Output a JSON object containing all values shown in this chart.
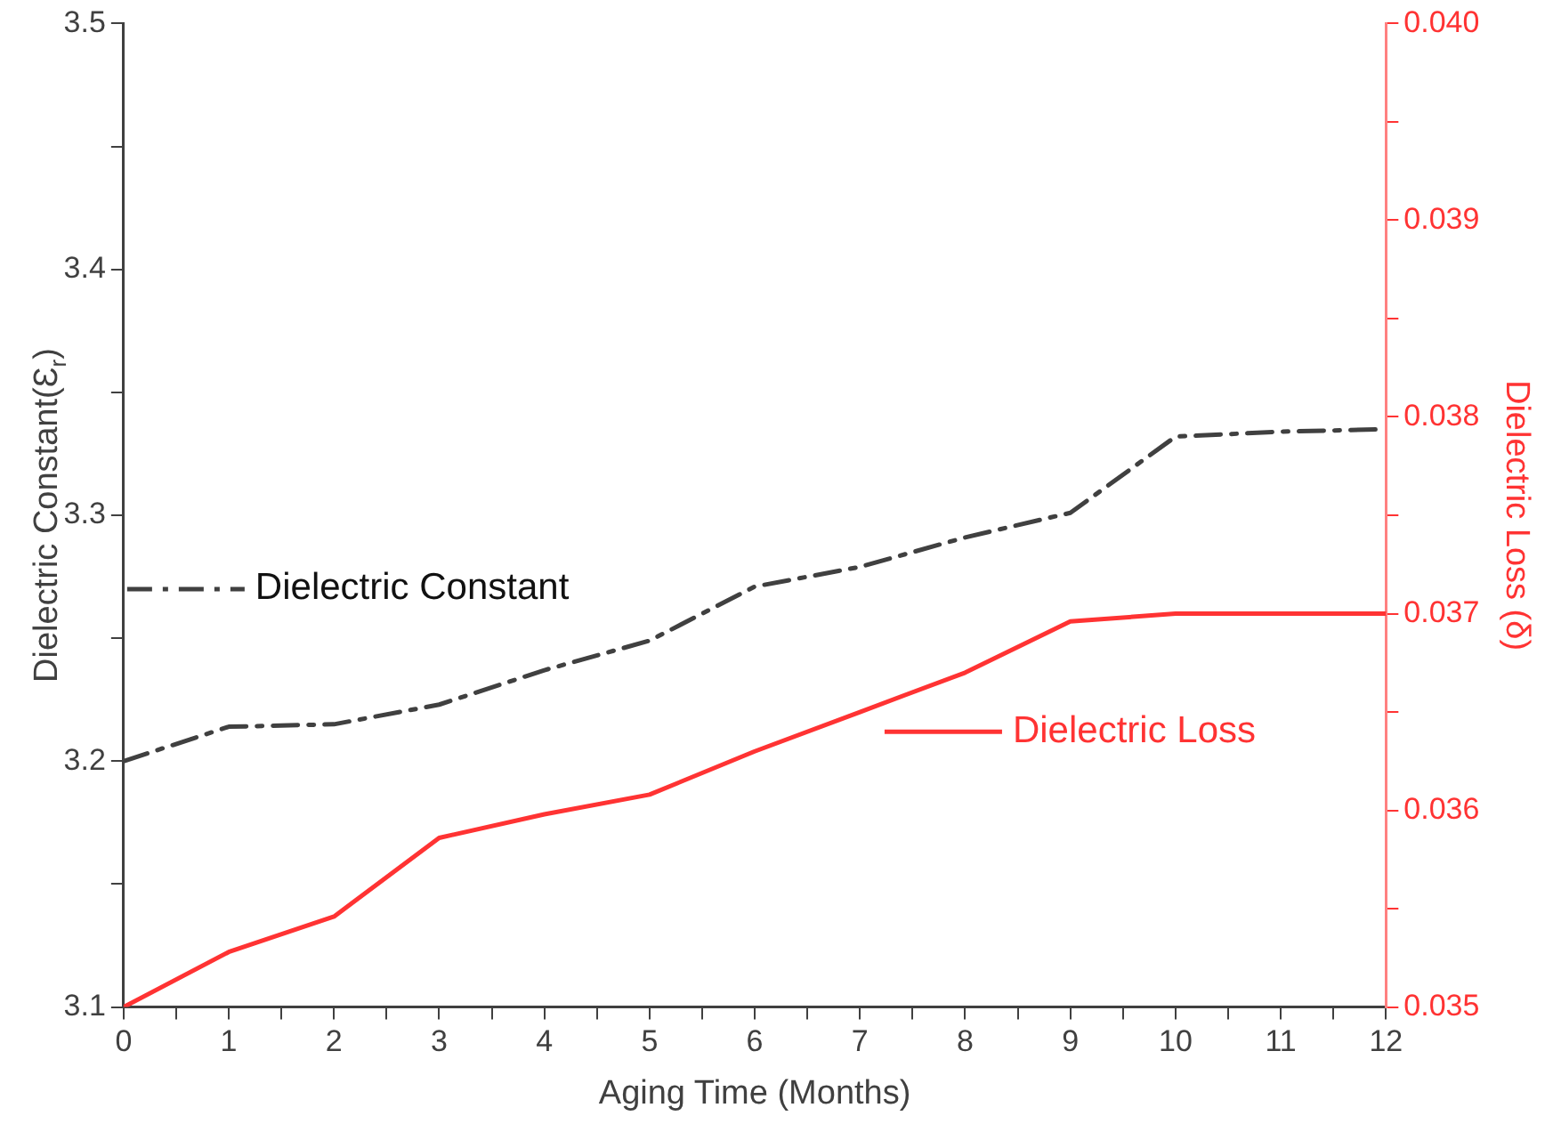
{
  "chart_data": {
    "type": "line",
    "xlabel": "Aging Time (Months)",
    "ylabel": "Dielectric Constant(Ɛ$_{r}$)",
    "y2label": "Dielectric Loss (δ)",
    "x": [
      0,
      1,
      2,
      3,
      4,
      5,
      6,
      7,
      8,
      9,
      10,
      11,
      12
    ],
    "series": [
      {
        "name": "Dielectric Constant",
        "color": "#404040",
        "line_style": "dashdot",
        "values": [
          3.2,
          3.214,
          3.215,
          3.223,
          3.237,
          3.249,
          3.271,
          3.279,
          3.291,
          3.301,
          3.332,
          3.334,
          3.335
        ]
      },
      {
        "name": "Dielectric Loss",
        "color": "#ff3333",
        "axis": "y2",
        "line_style": "solid",
        "values": [
          0.035,
          0.03528,
          0.03546,
          0.03586,
          0.03598,
          0.03608,
          0.0363,
          0.0365,
          0.0367,
          0.03696,
          0.037,
          0.037,
          0.037
        ]
      }
    ],
    "xlim": [
      0,
      12
    ],
    "xticks": [
      0,
      {
        "value": 0.5,
        "label": null
      },
      1,
      {
        "value": 1.5,
        "label": null
      },
      2,
      {
        "value": 2.5,
        "label": null
      },
      3,
      {
        "value": 3.5,
        "label": null
      },
      4,
      {
        "value": 4.5,
        "label": null
      },
      5,
      {
        "value": 5.5,
        "label": null
      },
      6,
      {
        "value": 6.5,
        "label": null
      },
      7,
      {
        "value": 7.5,
        "label": null
      },
      8,
      {
        "value": 8.5,
        "label": null
      },
      9,
      {
        "value": 9.5,
        "label": null
      },
      10,
      {
        "value": 10.5,
        "label": null
      },
      11,
      {
        "value": 11.5,
        "label": null
      },
      12
    ],
    "ylim": [
      3.1,
      3.5
    ],
    "yticks": [
      {
        "value": 3.1,
        "label": "3.1"
      },
      {
        "value": 3.15,
        "label": null
      },
      {
        "value": 3.2,
        "label": "3.2"
      },
      {
        "value": 3.25,
        "label": null
      },
      {
        "value": 3.3,
        "label": "3.3"
      },
      {
        "value": 3.35,
        "label": null
      },
      {
        "value": 3.4,
        "label": "3.4"
      },
      {
        "value": 3.45,
        "label": null
      },
      {
        "value": 3.5,
        "label": "3.5"
      }
    ],
    "y2lim": [
      0.035,
      0.04
    ],
    "y2ticks": [
      {
        "value": 0.035,
        "label": "0.035"
      },
      {
        "value": 0.0355,
        "label": null
      },
      {
        "value": 0.036,
        "label": "0.036"
      },
      {
        "value": 0.0365,
        "label": null
      },
      {
        "value": 0.037,
        "label": "0.037"
      },
      {
        "value": 0.0375,
        "label": null
      },
      {
        "value": 0.038,
        "label": "0.038"
      },
      {
        "value": 0.0385,
        "label": null
      },
      {
        "value": 0.039,
        "label": "0.039"
      },
      {
        "value": 0.0395,
        "label": null
      },
      {
        "value": 0.04,
        "label": "0.040"
      }
    ],
    "grid": false,
    "legend": "center",
    "marker": "none"
  }
}
